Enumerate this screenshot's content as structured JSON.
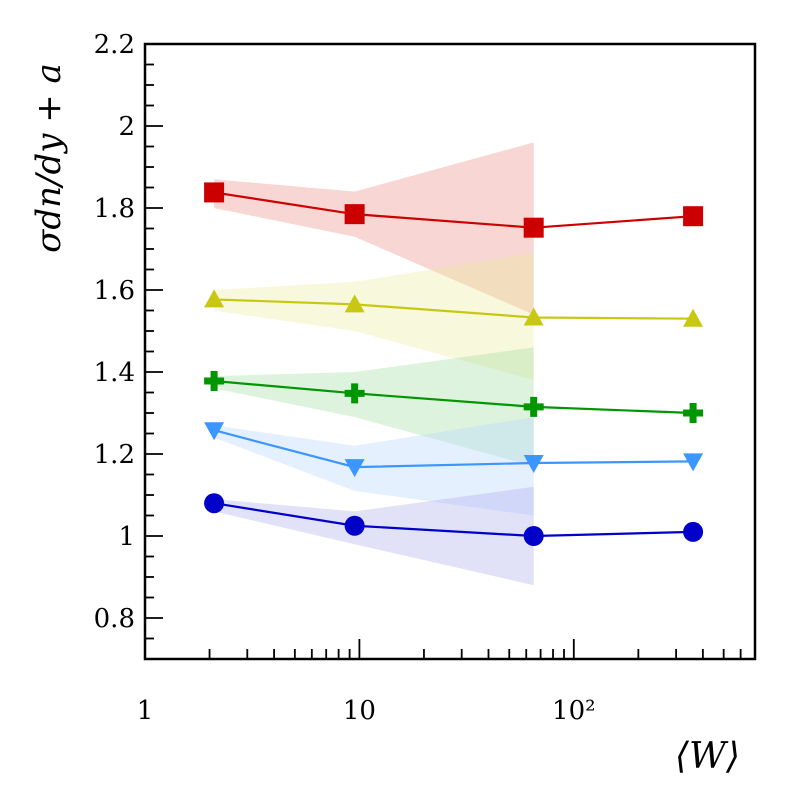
{
  "chart_data": {
    "type": "line",
    "title": "",
    "xlabel": "⟨W⟩",
    "ylabel": "σdn/dy + a",
    "xscale": "log",
    "xlim": [
      1,
      700
    ],
    "ylim": [
      0.7,
      2.2
    ],
    "x_ticks": [
      {
        "value": 1,
        "label": "1"
      },
      {
        "value": 10,
        "label": "10"
      },
      {
        "value": 100,
        "label": "10²"
      }
    ],
    "y_ticks": [
      {
        "value": 0.8,
        "label": "0.8"
      },
      {
        "value": 1.0,
        "label": "1"
      },
      {
        "value": 1.2,
        "label": "1.2"
      },
      {
        "value": 1.4,
        "label": "1.4"
      },
      {
        "value": 1.6,
        "label": "1.6"
      },
      {
        "value": 1.8,
        "label": "1.8"
      },
      {
        "value": 2.0,
        "label": "2"
      },
      {
        "value": 2.2,
        "label": "2.2"
      }
    ],
    "x": [
      2.1,
      9.5,
      65,
      360
    ],
    "series": [
      {
        "name": "square",
        "marker": "square",
        "color": "#cc0000",
        "band_color": "#e88a80",
        "values": [
          1.838,
          1.785,
          1.752,
          1.78
        ],
        "band_x": [
          2.1,
          9.5,
          65
        ],
        "band_low": [
          1.8,
          1.73,
          1.54
        ],
        "band_high": [
          1.87,
          1.84,
          1.96
        ]
      },
      {
        "name": "triangle-up",
        "marker": "triangle-up",
        "color": "#c8c814",
        "band_color": "#ecec9a",
        "values": [
          1.577,
          1.565,
          1.533,
          1.53
        ],
        "band_x": [
          2.1,
          9.5,
          65
        ],
        "band_low": [
          1.55,
          1.5,
          1.38
        ],
        "band_high": [
          1.6,
          1.62,
          1.69
        ]
      },
      {
        "name": "plus",
        "marker": "plus",
        "color": "#009600",
        "band_color": "#a0dca0",
        "values": [
          1.378,
          1.348,
          1.315,
          1.3
        ],
        "band_x": [
          2.1,
          9.5,
          65
        ],
        "band_low": [
          1.36,
          1.29,
          1.17
        ],
        "band_high": [
          1.39,
          1.4,
          1.46
        ]
      },
      {
        "name": "triangle-down",
        "marker": "triangle-down",
        "color": "#3c96ff",
        "band_color": "#b4d4ff",
        "values": [
          1.258,
          1.168,
          1.178,
          1.182
        ],
        "band_x": [
          2.1,
          9.5,
          65
        ],
        "band_low": [
          1.24,
          1.11,
          1.05
        ],
        "band_high": [
          1.27,
          1.22,
          1.29
        ]
      },
      {
        "name": "circle",
        "marker": "circle",
        "color": "#0000c8",
        "band_color": "#a8a8ec",
        "values": [
          1.08,
          1.025,
          1.0,
          1.01
        ],
        "band_x": [
          2.1,
          9.5,
          65
        ],
        "band_low": [
          1.06,
          0.98,
          0.88
        ],
        "band_high": [
          1.09,
          1.06,
          1.12
        ]
      }
    ]
  }
}
